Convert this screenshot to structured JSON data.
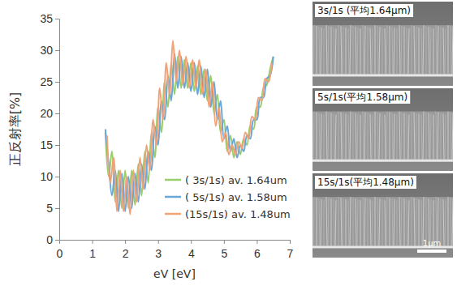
{
  "chart_data": {
    "type": "line",
    "x_label": "eV [eV]",
    "y_label": "正反射率[%]",
    "xlim": [
      0,
      7
    ],
    "xticks": [
      0,
      1,
      2,
      3,
      4,
      5,
      6,
      7
    ],
    "ylim": [
      0,
      35
    ],
    "yticks": [
      0,
      5,
      10,
      15,
      20,
      25,
      30,
      35
    ],
    "grid": false,
    "legend": "lower right",
    "series": [
      {
        "name": "( 3s/1s) av. 1.64um",
        "color": "#9acd6b",
        "x": [
          1.4,
          1.5,
          1.6,
          1.7,
          1.8,
          1.9,
          2.0,
          2.1,
          2.2,
          2.3,
          2.4,
          2.5,
          2.6,
          2.7,
          2.8,
          2.9,
          3.0,
          3.1,
          3.2,
          3.3,
          3.4,
          3.5,
          3.6,
          3.7,
          3.8,
          3.9,
          4.0,
          4.1,
          4.2,
          4.3,
          4.4,
          4.5,
          4.6,
          4.7,
          4.8,
          4.9,
          5.0,
          5.1,
          5.2,
          5.3,
          5.4,
          5.5,
          5.6,
          5.7,
          5.8,
          5.9,
          6.0,
          6.1,
          6.2,
          6.3,
          6.4,
          6.5
        ],
        "values": [
          17,
          10,
          14,
          6,
          11,
          5,
          11,
          5,
          11,
          5.5,
          12,
          7,
          14,
          9,
          17,
          13,
          21,
          17,
          25,
          21,
          28,
          23,
          29,
          24,
          28.5,
          24,
          28,
          23.5,
          27.5,
          23,
          27,
          22,
          26,
          20,
          23,
          17,
          19,
          14,
          16.5,
          13,
          15.5,
          13.5,
          16,
          15,
          18,
          17.5,
          21,
          21,
          24,
          24.5,
          27,
          29
        ]
      },
      {
        "name": "( 5s/1s) av. 1.58um",
        "color": "#6aa6d8",
        "x": [
          1.4,
          1.5,
          1.6,
          1.7,
          1.8,
          1.9,
          2.0,
          2.1,
          2.2,
          2.3,
          2.4,
          2.5,
          2.6,
          2.7,
          2.8,
          2.9,
          3.0,
          3.1,
          3.2,
          3.3,
          3.4,
          3.5,
          3.6,
          3.7,
          3.8,
          3.9,
          4.0,
          4.1,
          4.2,
          4.3,
          4.4,
          4.5,
          4.6,
          4.7,
          4.8,
          4.9,
          5.0,
          5.1,
          5.2,
          5.3,
          5.4,
          5.5,
          5.6,
          5.7,
          5.8,
          5.9,
          6.0,
          6.1,
          6.2,
          6.3,
          6.4,
          6.5
        ],
        "values": [
          17.5,
          12,
          7,
          11,
          4.5,
          10.5,
          4.5,
          10,
          5,
          10.5,
          6,
          12,
          8,
          14,
          11,
          18,
          15,
          22,
          19,
          26,
          22,
          29.5,
          24,
          29,
          24,
          28,
          23.5,
          28,
          23,
          27.5,
          22.5,
          27,
          21,
          25,
          19,
          22,
          16,
          18,
          14,
          16,
          13,
          15,
          14,
          16.5,
          16,
          19,
          19,
          22.5,
          22.5,
          25.5,
          26,
          29
        ]
      },
      {
        "name": "(15s/1s) av. 1.48um",
        "color": "#f2a277",
        "x": [
          1.45,
          1.55,
          1.65,
          1.75,
          1.85,
          1.95,
          2.05,
          2.15,
          2.25,
          2.35,
          2.45,
          2.55,
          2.65,
          2.75,
          2.85,
          2.95,
          3.05,
          3.15,
          3.25,
          3.35,
          3.45,
          3.55,
          3.65,
          3.75,
          3.85,
          3.95,
          4.05,
          4.15,
          4.25,
          4.35,
          4.45,
          4.55,
          4.65,
          4.75,
          4.85,
          4.95,
          5.05,
          5.15,
          5.25,
          5.35,
          5.45,
          5.55,
          5.65,
          5.75,
          5.85,
          5.95,
          6.05,
          6.15,
          6.25,
          6.35,
          6.45
        ],
        "values": [
          16.5,
          9,
          13,
          4.5,
          11,
          4.5,
          10,
          4,
          11,
          6,
          13,
          8,
          15,
          11,
          19,
          15,
          24,
          19,
          28,
          23,
          31.5,
          25,
          30,
          24.5,
          29,
          24,
          28.5,
          24,
          28.5,
          23,
          27,
          21,
          25,
          18,
          21,
          15.5,
          17,
          13.5,
          15,
          13.5,
          15.5,
          14.5,
          17,
          16,
          19.5,
          19,
          22.5,
          22,
          25.5,
          25,
          28
        ]
      }
    ]
  },
  "images": [
    {
      "label": "3s/1s (平均1.64μm)"
    },
    {
      "label": "5s/1s(平均1.58μm)"
    },
    {
      "label": "15s/1s(平均1.48μm)"
    }
  ],
  "scale_bar": "1μm"
}
